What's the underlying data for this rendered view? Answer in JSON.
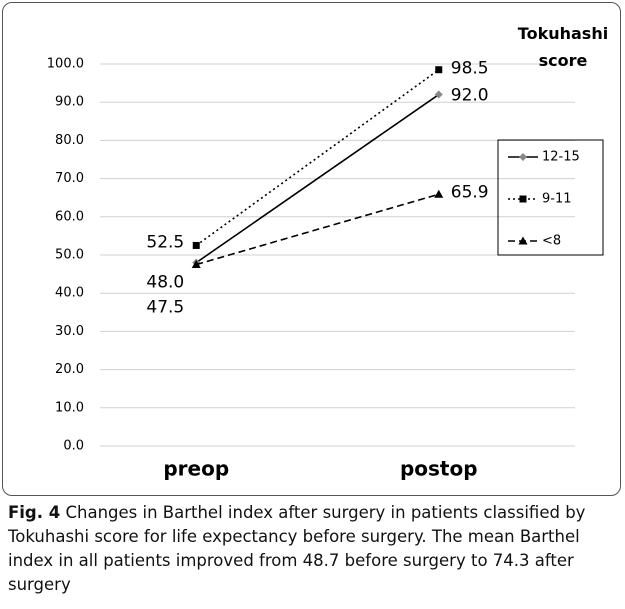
{
  "chart_data": {
    "type": "line",
    "categories": [
      "preop",
      "postop"
    ],
    "series": [
      {
        "name": "12-15",
        "color": "#000000",
        "marker_color": "#888888",
        "dash": "solid",
        "marker": "diamond",
        "values": [
          48.0,
          92.0
        ],
        "value_labels": [
          "48.0",
          "92.0"
        ]
      },
      {
        "name": "9-11",
        "color": "#000000",
        "marker_color": "#000000",
        "dash": "dotted",
        "marker": "square",
        "values": [
          52.5,
          98.5
        ],
        "value_labels": [
          "52.5",
          "98.5"
        ]
      },
      {
        "name": "<8",
        "color": "#000000",
        "marker_color": "#000000",
        "dash": "dashed",
        "marker": "triangle",
        "values": [
          47.5,
          65.9
        ],
        "value_labels": [
          "47.5",
          "65.9"
        ]
      }
    ],
    "ylim": [
      0,
      100
    ],
    "yticks": [
      {
        "value": 0,
        "label": "0.0"
      },
      {
        "value": 10,
        "label": "10.0"
      },
      {
        "value": 20,
        "label": "20.0"
      },
      {
        "value": 30,
        "label": "30.0"
      },
      {
        "value": 40,
        "label": "40.0"
      },
      {
        "value": 50,
        "label": "50.0"
      },
      {
        "value": 60,
        "label": "60.0"
      },
      {
        "value": 70,
        "label": "70.0"
      },
      {
        "value": 80,
        "label": "80.0"
      },
      {
        "value": 90,
        "label": "90.0"
      },
      {
        "value": 100,
        "label": "100.0"
      }
    ],
    "grid": true,
    "legend_title": "Tokuhashi score",
    "legend": "right"
  },
  "caption": {
    "label": "Fig. 4",
    "text": "Changes in Barthel index after surgery in patients classified by Tokuhashi score for life expectancy before surgery. The mean Barthel index in all patients improved from 48.7 before surgery to 74.3 after surgery"
  }
}
